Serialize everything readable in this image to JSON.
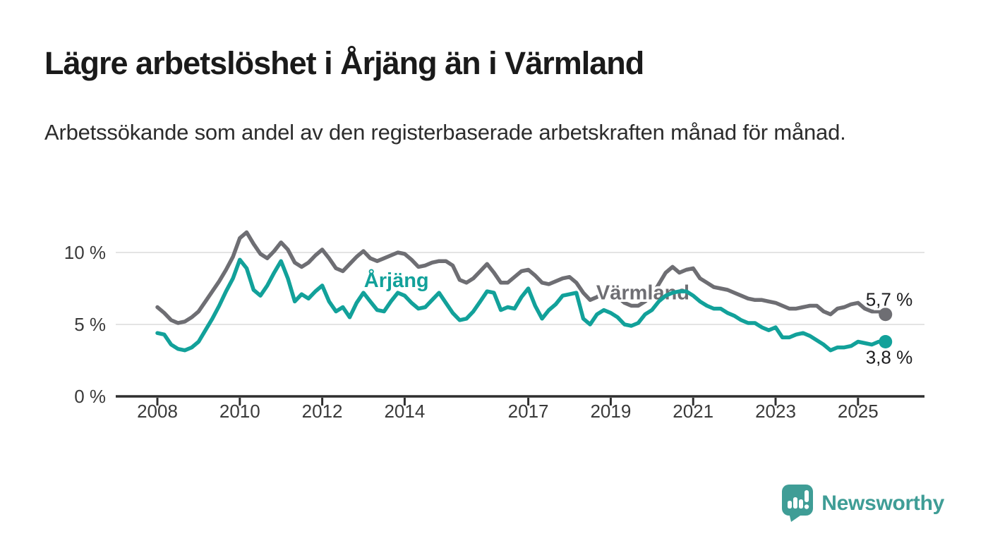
{
  "header": {
    "title": "Lägre arbetslöshet i Årjäng än i Värmland",
    "subtitle": "Arbetssökande som andel av den registerbaserade arbetskraften månad för månad."
  },
  "chart_data": {
    "type": "line",
    "x_unit": "year, monthly (2-month sampling)",
    "xlim": [
      2007.0,
      2026.6
    ],
    "ylim": [
      0,
      13
    ],
    "grid": "horizontal",
    "grid_values": [
      5,
      10
    ],
    "legend_position": "inline-labels-on-lines",
    "x_ticks": [
      {
        "label": "2008",
        "year": 2008
      },
      {
        "label": "2010",
        "year": 2010
      },
      {
        "label": "2012",
        "year": 2012
      },
      {
        "label": "2014",
        "year": 2014
      },
      {
        "label": "2017",
        "year": 2017
      },
      {
        "label": "2019",
        "year": 2019
      },
      {
        "label": "2021",
        "year": 2021
      },
      {
        "label": "2023",
        "year": 2023
      },
      {
        "label": "2025",
        "year": 2025
      }
    ],
    "y_ticks": [
      {
        "label": "0 %",
        "value": 0
      },
      {
        "label": "5 %",
        "value": 5
      },
      {
        "label": "10 %",
        "value": 10
      }
    ],
    "series": [
      {
        "name": "Värmland",
        "color": "#6e6e73",
        "end_label": "5,7 %",
        "end_value": 5.7,
        "label_year": 2019.78,
        "label_value": 6.75,
        "x_start": 2008.0,
        "x_step_months": 2,
        "values": [
          6.2,
          5.8,
          5.3,
          5.1,
          5.2,
          5.5,
          5.9,
          6.6,
          7.3,
          8.0,
          8.8,
          9.7,
          11.0,
          11.4,
          10.6,
          9.9,
          9.6,
          10.1,
          10.7,
          10.2,
          9.3,
          9.0,
          9.3,
          9.8,
          10.2,
          9.6,
          8.9,
          8.7,
          9.2,
          9.7,
          10.1,
          9.6,
          9.4,
          9.6,
          9.8,
          10.0,
          9.9,
          9.5,
          9.0,
          9.1,
          9.3,
          9.4,
          9.4,
          9.1,
          8.1,
          7.9,
          8.2,
          8.7,
          9.2,
          8.6,
          7.9,
          7.9,
          8.3,
          8.7,
          8.8,
          8.4,
          7.9,
          7.8,
          8.0,
          8.2,
          8.3,
          7.9,
          7.2,
          6.7,
          6.9,
          7.3,
          7.4,
          6.9,
          6.5,
          6.3,
          6.3,
          6.6,
          7.0,
          7.8,
          8.6,
          9.0,
          8.6,
          8.8,
          8.9,
          8.2,
          7.9,
          7.6,
          7.5,
          7.4,
          7.2,
          7.0,
          6.8,
          6.7,
          6.7,
          6.6,
          6.5,
          6.3,
          6.1,
          6.1,
          6.2,
          6.3,
          6.3,
          5.9,
          5.7,
          6.1,
          6.2,
          6.4,
          6.5,
          6.1,
          5.9,
          5.9,
          5.7
        ]
      },
      {
        "name": "Årjäng",
        "color": "#12a19a",
        "end_label": "3,8 %",
        "end_value": 3.8,
        "label_year": 2013.8,
        "label_value": 7.6,
        "x_start": 2008.0,
        "x_step_months": 2,
        "values": [
          4.4,
          4.3,
          3.6,
          3.3,
          3.2,
          3.4,
          3.8,
          4.6,
          5.4,
          6.3,
          7.3,
          8.2,
          9.5,
          8.9,
          7.4,
          7.0,
          7.7,
          8.6,
          9.4,
          8.2,
          6.6,
          7.1,
          6.8,
          7.3,
          7.7,
          6.6,
          5.9,
          6.2,
          5.5,
          6.5,
          7.2,
          6.6,
          6.0,
          5.9,
          6.6,
          7.2,
          7.0,
          6.5,
          6.1,
          6.2,
          6.7,
          7.2,
          6.5,
          5.8,
          5.3,
          5.4,
          5.9,
          6.6,
          7.3,
          7.2,
          6.0,
          6.2,
          6.1,
          6.9,
          7.5,
          6.3,
          5.4,
          6.0,
          6.4,
          7.0,
          7.1,
          7.2,
          5.4,
          5.0,
          5.7,
          6.0,
          5.8,
          5.5,
          5.0,
          4.9,
          5.1,
          5.7,
          6.0,
          6.6,
          7.0,
          7.2,
          7.3,
          7.3,
          7.0,
          6.6,
          6.3,
          6.1,
          6.1,
          5.8,
          5.6,
          5.3,
          5.1,
          5.1,
          4.8,
          4.6,
          4.8,
          4.1,
          4.1,
          4.3,
          4.4,
          4.2,
          3.9,
          3.6,
          3.2,
          3.4,
          3.4,
          3.5,
          3.8,
          3.7,
          3.6,
          3.8,
          3.8
        ]
      }
    ]
  },
  "branding": {
    "name": "Newsworthy",
    "color": "#3f9d96"
  }
}
